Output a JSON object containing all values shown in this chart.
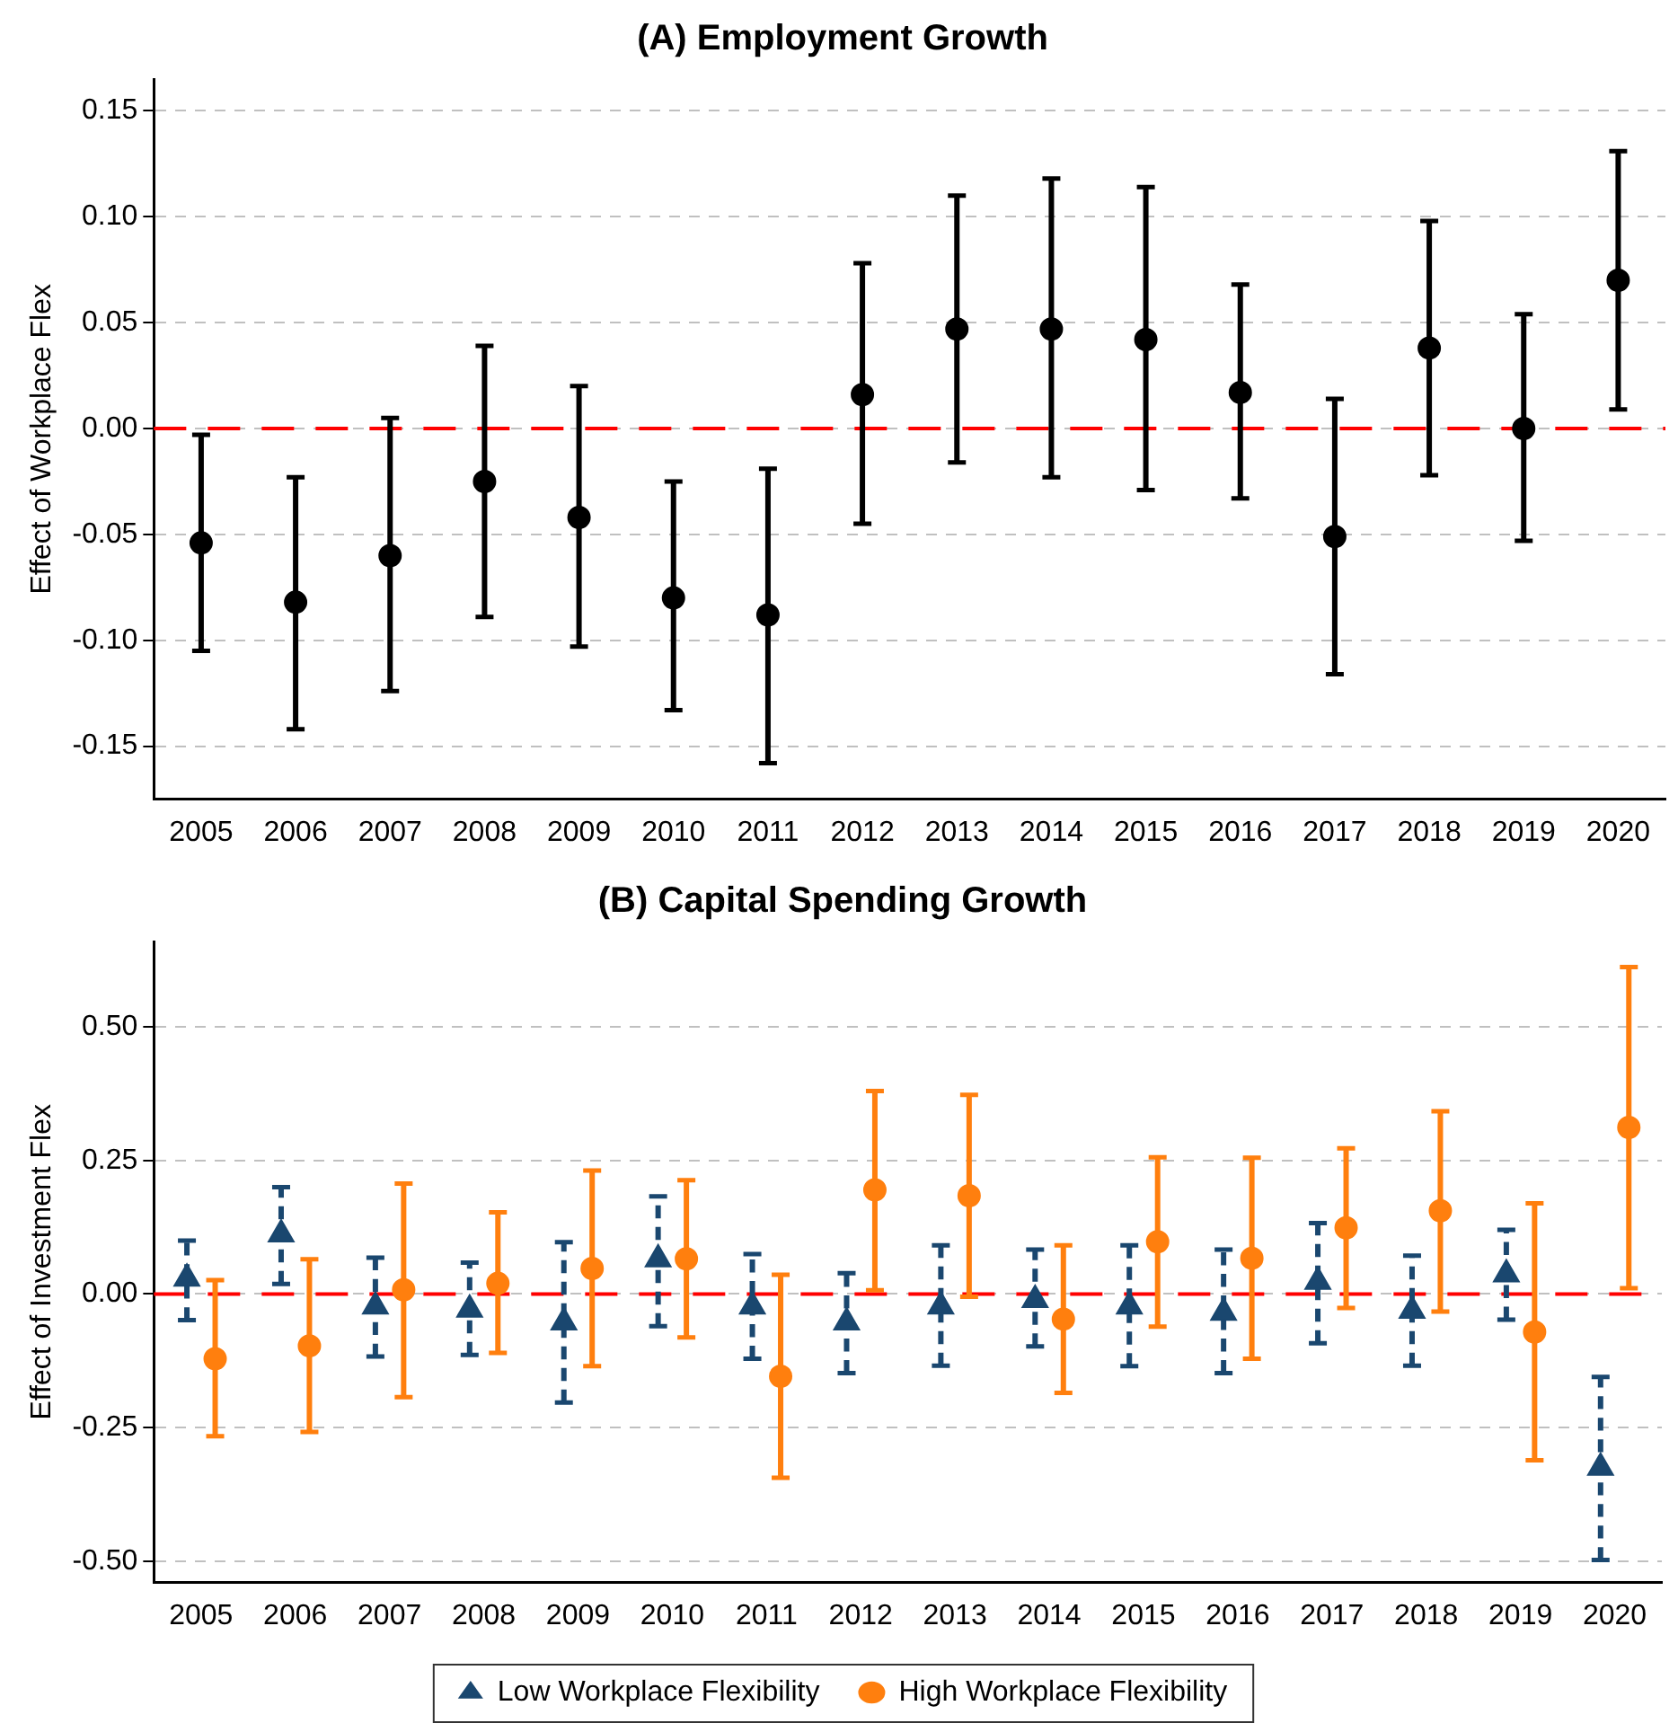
{
  "chart_data": [
    {
      "type": "scatter",
      "title": "(A) Employment Growth",
      "ylabel": "Effect of Workplace Flex",
      "categories": [
        "2005",
        "2006",
        "2007",
        "2008",
        "2009",
        "2010",
        "2011",
        "2012",
        "2013",
        "2014",
        "2015",
        "2016",
        "2017",
        "2018",
        "2019",
        "2020"
      ],
      "series": [
        {
          "color": "#000000",
          "marker": "circle",
          "values": [
            -0.054,
            -0.082,
            -0.06,
            -0.025,
            -0.042,
            -0.08,
            -0.088,
            0.016,
            0.047,
            0.047,
            0.042,
            0.017,
            -0.051,
            0.038,
            0.0,
            0.07
          ],
          "errors": [
            [
              -0.105,
              -0.003
            ],
            [
              -0.142,
              -0.023
            ],
            [
              -0.124,
              0.005
            ],
            [
              -0.089,
              0.039
            ],
            [
              -0.103,
              0.02
            ],
            [
              -0.133,
              -0.025
            ],
            [
              -0.158,
              -0.019
            ],
            [
              -0.045,
              0.078
            ],
            [
              -0.016,
              0.11
            ],
            [
              -0.023,
              0.118
            ],
            [
              -0.029,
              0.114
            ],
            [
              -0.033,
              0.068
            ],
            [
              -0.116,
              0.014
            ],
            [
              -0.022,
              0.098
            ],
            [
              -0.053,
              0.054
            ],
            [
              0.009,
              0.131
            ]
          ]
        }
      ],
      "ylim": [
        -0.175,
        0.165
      ],
      "yticks": [
        {
          "value": -0.15,
          "label": "-0.15"
        },
        {
          "value": -0.1,
          "label": "-0.10"
        },
        {
          "value": -0.05,
          "label": "-0.05"
        },
        {
          "value": 0,
          "label": "0.00"
        },
        {
          "value": 0.05,
          "label": "0.05"
        },
        {
          "value": 0.1,
          "label": "0.10"
        },
        {
          "value": 0.15,
          "label": "0.15"
        }
      ],
      "grid": "y",
      "legend": false,
      "ref_lines": [
        {
          "axis": "y",
          "value": 0,
          "color": "#ff0000",
          "line_style": "dashed"
        }
      ]
    },
    {
      "type": "scatter",
      "title": "(B) Capital Spending Growth",
      "ylabel": "Effect of Investment Flex",
      "categories": [
        "2005",
        "2006",
        "2007",
        "2008",
        "2009",
        "2010",
        "2011",
        "2012",
        "2013",
        "2014",
        "2015",
        "2016",
        "2017",
        "2018",
        "2019",
        "2020"
      ],
      "series": [
        {
          "name": "Low Workplace Flexibility",
          "color": "#1a476f",
          "marker": "triangle",
          "line_style": "dashed",
          "values": [
            0.029,
            0.112,
            -0.023,
            -0.029,
            -0.053,
            0.065,
            -0.023,
            -0.053,
            -0.023,
            -0.011,
            -0.023,
            -0.035,
            0.023,
            -0.031,
            0.037,
            -0.325
          ],
          "errors": [
            [
              -0.049,
              0.1
            ],
            [
              0.019,
              0.2
            ],
            [
              -0.117,
              0.068
            ],
            [
              -0.114,
              0.059
            ],
            [
              -0.203,
              0.097
            ],
            [
              -0.06,
              0.183
            ],
            [
              -0.121,
              0.075
            ],
            [
              -0.148,
              0.039
            ],
            [
              -0.134,
              0.091
            ],
            [
              -0.098,
              0.083
            ],
            [
              -0.135,
              0.091
            ],
            [
              -0.148,
              0.083
            ],
            [
              -0.092,
              0.133
            ],
            [
              -0.134,
              0.072
            ],
            [
              -0.048,
              0.12
            ],
            [
              -0.498,
              -0.155
            ]
          ]
        },
        {
          "name": "High Workplace Flexibility",
          "color": "#ff7f0e",
          "marker": "circle",
          "line_style": "solid",
          "values": [
            -0.121,
            -0.097,
            0.008,
            0.02,
            0.048,
            0.066,
            -0.154,
            0.195,
            0.184,
            -0.047,
            0.098,
            0.067,
            0.124,
            0.156,
            -0.071,
            0.312
          ],
          "errors": [
            [
              -0.266,
              0.026
            ],
            [
              -0.258,
              0.065
            ],
            [
              -0.193,
              0.207
            ],
            [
              -0.11,
              0.153
            ],
            [
              -0.135,
              0.231
            ],
            [
              -0.081,
              0.213
            ],
            [
              -0.344,
              0.036
            ],
            [
              0.007,
              0.38
            ],
            [
              -0.005,
              0.373
            ],
            [
              -0.185,
              0.091
            ],
            [
              -0.061,
              0.256
            ],
            [
              -0.121,
              0.255
            ],
            [
              -0.026,
              0.273
            ],
            [
              -0.033,
              0.342
            ],
            [
              -0.311,
              0.17
            ],
            [
              0.011,
              0.612
            ]
          ]
        }
      ],
      "ylim": [
        -0.54,
        0.66
      ],
      "yticks": [
        {
          "value": -0.5,
          "label": "-0.50"
        },
        {
          "value": -0.25,
          "label": "-0.25"
        },
        {
          "value": 0,
          "label": "0.00"
        },
        {
          "value": 0.25,
          "label": "0.25"
        },
        {
          "value": 0.5,
          "label": "0.50"
        }
      ],
      "grid": "y",
      "legend": "bottom",
      "ref_lines": [
        {
          "axis": "y",
          "value": 0,
          "color": "#ff0000",
          "line_style": "dashed"
        }
      ]
    }
  ]
}
